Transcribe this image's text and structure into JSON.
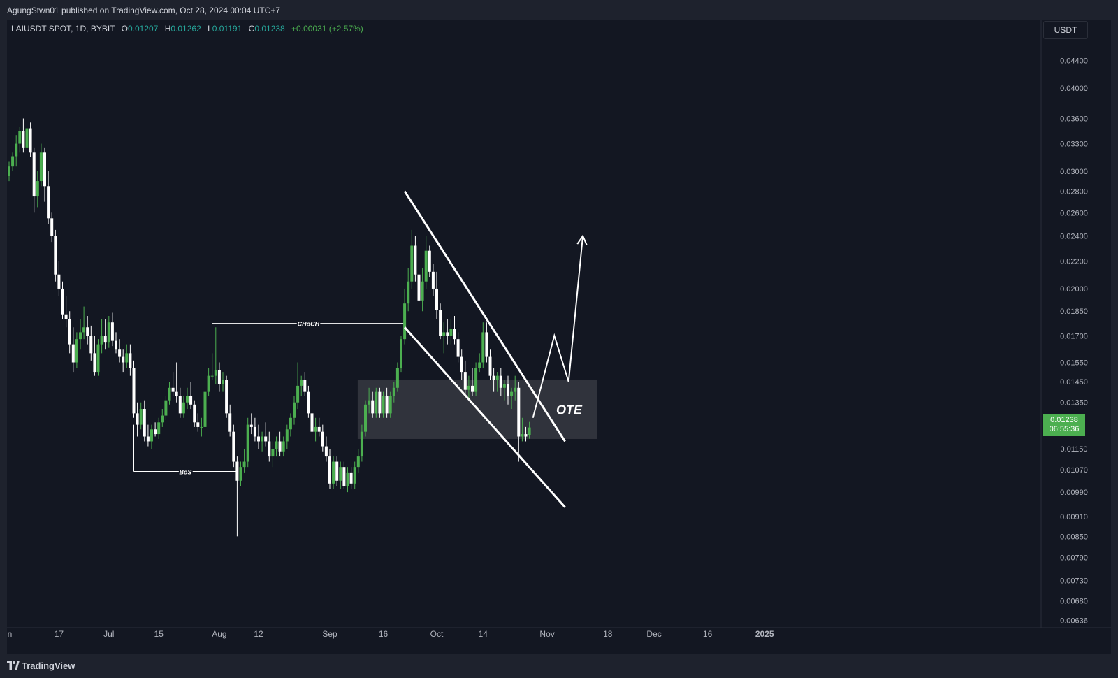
{
  "header": {
    "published": "AgungStwn01 published on TradingView.com, Oct 28, 2024 00:04 UTC+7"
  },
  "legend": {
    "symbol": "LAIUSDT SPOT, 1D, BYBIT",
    "open_label": "O",
    "open": "0.01207",
    "high_label": "H",
    "high": "0.01262",
    "low_label": "L",
    "low": "0.01191",
    "close_label": "C",
    "close": "0.01238",
    "change": "+0.00031 (+2.57%)"
  },
  "currency": "USDT",
  "price_tag": {
    "price": "0.01238",
    "countdown": "06:55:36"
  },
  "footer": {
    "brand": "TradingView"
  },
  "colors": {
    "background": "#131722",
    "bull": "#4caf50",
    "bear": "#ffffff",
    "annotation": "#ffffff",
    "ote_zone": "#3b3d46"
  },
  "chart_data": {
    "type": "candlestick",
    "scale": "log",
    "y_range": [
      0.0062,
      0.046
    ],
    "y_ticks": [
      "0.04400",
      "0.04000",
      "0.03600",
      "0.03300",
      "0.03000",
      "0.02800",
      "0.02600",
      "0.02400",
      "0.02200",
      "0.02000",
      "0.01850",
      "0.01700",
      "0.01550",
      "0.01450",
      "0.01350",
      "0.01150",
      "0.01070",
      "0.00990",
      "0.00910",
      "0.00850",
      "0.00790",
      "0.00730",
      "0.00680",
      "0.00636"
    ],
    "x_ticks": [
      "n",
      "17",
      "Jul",
      "15",
      "Aug",
      "12",
      "Sep",
      "16",
      "Oct",
      "14",
      "Nov",
      "18",
      "Dec",
      "16",
      "2025"
    ],
    "candles": [
      [
        "2024-06-03",
        0.0295,
        0.031,
        0.029,
        0.0305
      ],
      [
        "2024-06-04",
        0.0305,
        0.032,
        0.03,
        0.0316
      ],
      [
        "2024-06-05",
        0.0316,
        0.034,
        0.0305,
        0.033
      ],
      [
        "2024-06-06",
        0.033,
        0.035,
        0.032,
        0.0345
      ],
      [
        "2024-06-07",
        0.0345,
        0.036,
        0.032,
        0.0325
      ],
      [
        "2024-06-08",
        0.0325,
        0.0355,
        0.032,
        0.0348
      ],
      [
        "2024-06-09",
        0.0348,
        0.0355,
        0.0315,
        0.032
      ],
      [
        "2024-06-10",
        0.032,
        0.0325,
        0.026,
        0.0275
      ],
      [
        "2024-06-11",
        0.0275,
        0.03,
        0.0265,
        0.029
      ],
      [
        "2024-06-12",
        0.029,
        0.033,
        0.0285,
        0.032
      ],
      [
        "2024-06-13",
        0.032,
        0.0325,
        0.027,
        0.0285
      ],
      [
        "2024-06-14",
        0.0285,
        0.03,
        0.025,
        0.0255
      ],
      [
        "2024-06-15",
        0.0255,
        0.026,
        0.0235,
        0.024
      ],
      [
        "2024-06-16",
        0.024,
        0.0245,
        0.0205,
        0.021
      ],
      [
        "2024-06-17",
        0.021,
        0.022,
        0.0195,
        0.02
      ],
      [
        "2024-06-18",
        0.02,
        0.0205,
        0.018,
        0.0183
      ],
      [
        "2024-06-19",
        0.0183,
        0.0195,
        0.0175,
        0.018
      ],
      [
        "2024-06-20",
        0.018,
        0.0185,
        0.016,
        0.0165
      ],
      [
        "2024-06-21",
        0.0165,
        0.0175,
        0.015,
        0.0155
      ],
      [
        "2024-06-22",
        0.0155,
        0.0172,
        0.0152,
        0.0168
      ],
      [
        "2024-06-23",
        0.0168,
        0.018,
        0.0162,
        0.0172
      ],
      [
        "2024-06-24",
        0.0172,
        0.0188,
        0.0168,
        0.0175
      ],
      [
        "2024-06-25",
        0.0175,
        0.0182,
        0.0165,
        0.017
      ],
      [
        "2024-06-26",
        0.017,
        0.0176,
        0.0156,
        0.016
      ],
      [
        "2024-06-27",
        0.016,
        0.017,
        0.0148,
        0.015
      ],
      [
        "2024-06-28",
        0.015,
        0.0168,
        0.0148,
        0.0165
      ],
      [
        "2024-06-29",
        0.0165,
        0.018,
        0.016,
        0.017
      ],
      [
        "2024-06-30",
        0.017,
        0.018,
        0.0162,
        0.0166
      ],
      [
        "2024-07-01",
        0.0166,
        0.0182,
        0.0163,
        0.0178
      ],
      [
        "2024-07-02",
        0.0178,
        0.0184,
        0.0164,
        0.0167
      ],
      [
        "2024-07-03",
        0.0167,
        0.0172,
        0.016,
        0.0162
      ],
      [
        "2024-07-04",
        0.0162,
        0.0168,
        0.0155,
        0.0158
      ],
      [
        "2024-07-05",
        0.0158,
        0.0162,
        0.015,
        0.0155
      ],
      [
        "2024-07-06",
        0.0155,
        0.0165,
        0.0152,
        0.016
      ],
      [
        "2024-07-07",
        0.016,
        0.0165,
        0.0148,
        0.0152
      ],
      [
        "2024-07-08",
        0.0152,
        0.0156,
        0.0128,
        0.013
      ],
      [
        "2024-07-09",
        0.013,
        0.0135,
        0.012,
        0.0125
      ],
      [
        "2024-07-10",
        0.0125,
        0.0135,
        0.0123,
        0.0132
      ],
      [
        "2024-07-11",
        0.0132,
        0.0136,
        0.0118,
        0.012
      ],
      [
        "2024-07-12",
        0.012,
        0.0125,
        0.0116,
        0.0118
      ],
      [
        "2024-07-13",
        0.0118,
        0.0125,
        0.0115,
        0.0123
      ],
      [
        "2024-07-14",
        0.0123,
        0.0126,
        0.012,
        0.0121
      ],
      [
        "2024-07-15",
        0.0121,
        0.0128,
        0.0119,
        0.0126
      ],
      [
        "2024-07-16",
        0.0126,
        0.0132,
        0.0124,
        0.0129
      ],
      [
        "2024-07-17",
        0.0129,
        0.0138,
        0.0127,
        0.0136
      ],
      [
        "2024-07-18",
        0.0136,
        0.0145,
        0.0134,
        0.0142
      ],
      [
        "2024-07-19",
        0.0142,
        0.015,
        0.0138,
        0.014
      ],
      [
        "2024-07-20",
        0.014,
        0.0155,
        0.0135,
        0.0138
      ],
      [
        "2024-07-21",
        0.0138,
        0.0142,
        0.0128,
        0.013
      ],
      [
        "2024-07-22",
        0.013,
        0.0138,
        0.0128,
        0.0135
      ],
      [
        "2024-07-23",
        0.0135,
        0.0142,
        0.0132,
        0.0138
      ],
      [
        "2024-07-24",
        0.0138,
        0.0145,
        0.0132,
        0.0134
      ],
      [
        "2024-07-25",
        0.0134,
        0.0136,
        0.0124,
        0.0126
      ],
      [
        "2024-07-26",
        0.0126,
        0.013,
        0.0122,
        0.0124
      ],
      [
        "2024-07-27",
        0.0124,
        0.0128,
        0.012,
        0.0124
      ],
      [
        "2024-07-28",
        0.0124,
        0.0142,
        0.0122,
        0.014
      ],
      [
        "2024-07-29",
        0.014,
        0.0152,
        0.0138,
        0.0148
      ],
      [
        "2024-07-30",
        0.0148,
        0.016,
        0.0146,
        0.0148
      ],
      [
        "2024-07-31",
        0.0148,
        0.0175,
        0.0144,
        0.0151
      ],
      [
        "2024-08-01",
        0.0151,
        0.0155,
        0.014,
        0.0144
      ],
      [
        "2024-08-02",
        0.0144,
        0.015,
        0.014,
        0.0146
      ],
      [
        "2024-08-03",
        0.0146,
        0.0148,
        0.0128,
        0.013
      ],
      [
        "2024-08-04",
        0.013,
        0.0134,
        0.012,
        0.0122
      ],
      [
        "2024-08-05",
        0.0122,
        0.0125,
        0.0108,
        0.011
      ],
      [
        "2024-08-06",
        0.011,
        0.0112,
        0.0085,
        0.0103
      ],
      [
        "2024-08-07",
        0.0103,
        0.011,
        0.0101,
        0.0108
      ],
      [
        "2024-08-08",
        0.0108,
        0.0115,
        0.0106,
        0.011
      ],
      [
        "2024-08-09",
        0.011,
        0.0128,
        0.0108,
        0.0125
      ],
      [
        "2024-08-10",
        0.0125,
        0.013,
        0.0121,
        0.0124
      ],
      [
        "2024-08-11",
        0.0124,
        0.0128,
        0.0118,
        0.012
      ],
      [
        "2024-08-12",
        0.012,
        0.0125,
        0.0115,
        0.0118
      ],
      [
        "2024-08-13",
        0.0118,
        0.0122,
        0.0114,
        0.012
      ],
      [
        "2024-08-14",
        0.012,
        0.0126,
        0.0116,
        0.0118
      ],
      [
        "2024-08-15",
        0.0118,
        0.0122,
        0.011,
        0.0112
      ],
      [
        "2024-08-16",
        0.0112,
        0.0118,
        0.0108,
        0.0115
      ],
      [
        "2024-08-17",
        0.0115,
        0.012,
        0.0112,
        0.0118
      ],
      [
        "2024-08-18",
        0.0118,
        0.0122,
        0.0112,
        0.0114
      ],
      [
        "2024-08-19",
        0.0114,
        0.012,
        0.0112,
        0.0118
      ],
      [
        "2024-08-20",
        0.0118,
        0.0125,
        0.0115,
        0.0123
      ],
      [
        "2024-08-21",
        0.0123,
        0.013,
        0.012,
        0.0128
      ],
      [
        "2024-08-22",
        0.0128,
        0.0138,
        0.0125,
        0.0135
      ],
      [
        "2024-08-23",
        0.0135,
        0.0155,
        0.0132,
        0.0143
      ],
      [
        "2024-08-24",
        0.0143,
        0.0148,
        0.0138,
        0.0146
      ],
      [
        "2024-08-25",
        0.0146,
        0.015,
        0.0138,
        0.014
      ],
      [
        "2024-08-26",
        0.014,
        0.0143,
        0.0128,
        0.013
      ],
      [
        "2024-08-27",
        0.013,
        0.0134,
        0.012,
        0.0122
      ],
      [
        "2024-08-28",
        0.0122,
        0.0128,
        0.0118,
        0.0124
      ],
      [
        "2024-08-29",
        0.0124,
        0.0128,
        0.012,
        0.0122
      ],
      [
        "2024-08-30",
        0.0122,
        0.0125,
        0.0114,
        0.0116
      ],
      [
        "2024-08-31",
        0.0116,
        0.012,
        0.011,
        0.0112
      ],
      [
        "2024-09-01",
        0.0112,
        0.0115,
        0.01,
        0.0102
      ],
      [
        "2024-09-02",
        0.0102,
        0.0112,
        0.01,
        0.011
      ],
      [
        "2024-09-03",
        0.011,
        0.0112,
        0.0101,
        0.0103
      ],
      [
        "2024-09-04",
        0.0103,
        0.011,
        0.01,
        0.0108
      ],
      [
        "2024-09-05",
        0.0108,
        0.011,
        0.01,
        0.0101
      ],
      [
        "2024-09-06",
        0.0101,
        0.0108,
        0.0099,
        0.0106
      ],
      [
        "2024-09-07",
        0.0106,
        0.0108,
        0.01,
        0.0102
      ],
      [
        "2024-09-08",
        0.0102,
        0.011,
        0.01,
        0.0108
      ],
      [
        "2024-09-09",
        0.0108,
        0.0115,
        0.0106,
        0.0112
      ],
      [
        "2024-09-10",
        0.0112,
        0.0125,
        0.011,
        0.0122
      ],
      [
        "2024-09-11",
        0.0122,
        0.0136,
        0.012,
        0.0134
      ],
      [
        "2024-09-12",
        0.0134,
        0.0142,
        0.013,
        0.0136
      ],
      [
        "2024-09-13",
        0.0136,
        0.014,
        0.0128,
        0.013
      ],
      [
        "2024-09-14",
        0.013,
        0.0142,
        0.0128,
        0.014
      ],
      [
        "2024-09-15",
        0.014,
        0.0142,
        0.0128,
        0.013
      ],
      [
        "2024-09-16",
        0.013,
        0.014,
        0.0128,
        0.0138
      ],
      [
        "2024-09-17",
        0.0138,
        0.0142,
        0.0128,
        0.013
      ],
      [
        "2024-09-18",
        0.013,
        0.014,
        0.0128,
        0.0138
      ],
      [
        "2024-09-19",
        0.0138,
        0.0145,
        0.0135,
        0.0142
      ],
      [
        "2024-09-20",
        0.0142,
        0.0155,
        0.014,
        0.0152
      ],
      [
        "2024-09-21",
        0.0152,
        0.017,
        0.015,
        0.0168
      ],
      [
        "2024-09-22",
        0.0168,
        0.02,
        0.0165,
        0.019
      ],
      [
        "2024-09-23",
        0.019,
        0.0215,
        0.0185,
        0.0205
      ],
      [
        "2024-09-24",
        0.0205,
        0.0245,
        0.02,
        0.0232
      ],
      [
        "2024-09-25",
        0.0232,
        0.024,
        0.0205,
        0.021
      ],
      [
        "2024-09-26",
        0.021,
        0.0225,
        0.0188,
        0.0192
      ],
      [
        "2024-09-27",
        0.0192,
        0.0215,
        0.0185,
        0.0205
      ],
      [
        "2024-09-28",
        0.0205,
        0.024,
        0.02,
        0.0228
      ],
      [
        "2024-09-29",
        0.0228,
        0.0232,
        0.0208,
        0.0212
      ],
      [
        "2024-09-30",
        0.0212,
        0.0218,
        0.0195,
        0.02
      ],
      [
        "2024-10-01",
        0.02,
        0.0212,
        0.018,
        0.0186
      ],
      [
        "2024-10-02",
        0.0186,
        0.019,
        0.0168,
        0.017
      ],
      [
        "2024-10-03",
        0.017,
        0.0178,
        0.016,
        0.0172
      ],
      [
        "2024-10-04",
        0.0172,
        0.018,
        0.0165,
        0.017
      ],
      [
        "2024-10-05",
        0.017,
        0.018,
        0.0165,
        0.0174
      ],
      [
        "2024-10-06",
        0.0174,
        0.0182,
        0.0165,
        0.0168
      ],
      [
        "2024-10-07",
        0.0168,
        0.0172,
        0.0155,
        0.0158
      ],
      [
        "2024-10-08",
        0.0158,
        0.0162,
        0.0146,
        0.015
      ],
      [
        "2024-10-09",
        0.015,
        0.0156,
        0.0138,
        0.0141
      ],
      [
        "2024-10-10",
        0.0141,
        0.0148,
        0.0136,
        0.0143
      ],
      [
        "2024-10-11",
        0.0143,
        0.0152,
        0.0138,
        0.014
      ],
      [
        "2024-10-12",
        0.014,
        0.0155,
        0.0138,
        0.0152
      ],
      [
        "2024-10-13",
        0.0152,
        0.016,
        0.015,
        0.0155
      ],
      [
        "2024-10-14",
        0.0155,
        0.0178,
        0.0152,
        0.0172
      ],
      [
        "2024-10-15",
        0.0172,
        0.0178,
        0.0155,
        0.0158
      ],
      [
        "2024-10-16",
        0.0158,
        0.0162,
        0.0146,
        0.0148
      ],
      [
        "2024-10-17",
        0.0148,
        0.0152,
        0.014,
        0.0146
      ],
      [
        "2024-10-18",
        0.0146,
        0.015,
        0.014,
        0.0148
      ],
      [
        "2024-10-19",
        0.0148,
        0.0152,
        0.0138,
        0.0142
      ],
      [
        "2024-10-20",
        0.0142,
        0.0146,
        0.0136,
        0.0144
      ],
      [
        "2024-10-21",
        0.0144,
        0.0148,
        0.0134,
        0.0138
      ],
      [
        "2024-10-22",
        0.0138,
        0.0142,
        0.0132,
        0.014
      ],
      [
        "2024-10-23",
        0.014,
        0.0148,
        0.0136,
        0.0142
      ],
      [
        "2024-10-24",
        0.0142,
        0.0145,
        0.011,
        0.012
      ],
      [
        "2024-10-25",
        0.012,
        0.0128,
        0.0118,
        0.0121
      ],
      [
        "2024-10-26",
        0.0121,
        0.0124,
        0.0118,
        0.012
      ],
      [
        "2024-10-27",
        0.01207,
        0.01262,
        0.01191,
        0.01238
      ]
    ],
    "annotations": [
      {
        "type": "label",
        "text": "CHoCH",
        "level": 0.018
      },
      {
        "type": "label",
        "text": "BoS",
        "level": 0.011
      },
      {
        "type": "zone",
        "text": "OTE",
        "range": [
          0.0119,
          0.0146
        ]
      },
      {
        "type": "falling-wedge",
        "upper": [
          [
            "2024-09-22",
            0.028
          ],
          [
            "2024-11-06",
            0.0118
          ]
        ],
        "lower": [
          [
            "2024-09-22",
            0.0175
          ],
          [
            "2024-11-06",
            0.0094
          ]
        ]
      },
      {
        "type": "projection-path",
        "points": [
          [
            "2024-10-28",
            0.0128
          ],
          [
            "2024-11-03",
            0.017
          ],
          [
            "2024-11-07",
            0.0145
          ],
          [
            "2024-11-11",
            0.024
          ]
        ]
      }
    ]
  }
}
